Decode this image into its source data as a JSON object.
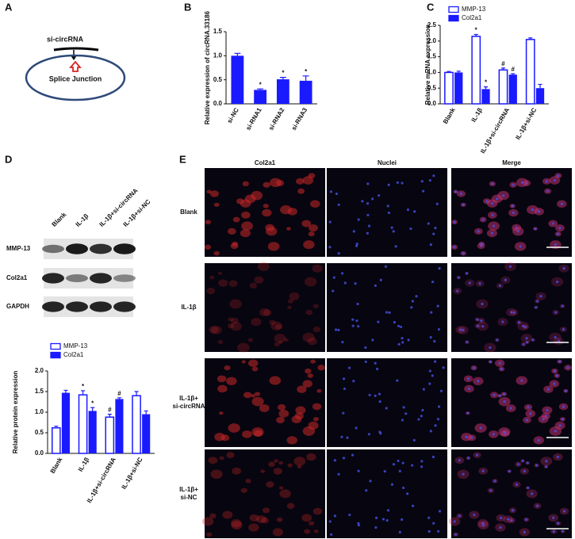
{
  "panel_labels": [
    "A",
    "B",
    "C",
    "D",
    "E"
  ],
  "diagram": {
    "inhibitor": "si-circRNA",
    "target": "Splice Junction"
  },
  "blot": {
    "lanes": [
      "Blank",
      "IL-1β",
      "IL-1β+si-circRNA",
      "IL-1β+si-NC"
    ],
    "rows": [
      "MMP-13",
      "Col2a1",
      "GAPDH"
    ]
  },
  "micrographs": {
    "columns": [
      "Col2a1",
      "Nuclei",
      "Merge"
    ],
    "rows": [
      [
        "Blank"
      ],
      [
        "IL-1β"
      ],
      [
        "IL-1β+",
        "si-circRNA"
      ],
      [
        "IL-1β+",
        "si-NC"
      ]
    ]
  },
  "chart_data": [
    {
      "type": "bar",
      "ylabel": "Relative expression of circRNA.33186",
      "categories": [
        "si-NC",
        "si-RNA1",
        "si-RNA2",
        "si-RNA3"
      ],
      "values": [
        1.0,
        0.29,
        0.51,
        0.48
      ],
      "errors": [
        0.05,
        0.02,
        0.04,
        0.1
      ],
      "annotations": [
        null,
        "*",
        "*",
        "*"
      ],
      "color": "#1a1aff",
      "ylim": [
        0,
        1.5
      ],
      "yticks": [
        {
          "value": 0,
          "label": "0.0"
        },
        {
          "value": 0.5,
          "label": "0.5"
        },
        {
          "value": 1,
          "label": "1.0"
        },
        {
          "value": 1.5,
          "label": "1.5"
        }
      ]
    },
    {
      "type": "bar",
      "ylabel": "Relative mRNA expression",
      "categories": [
        "Blank",
        "IL-1β",
        "IL-1β+si-circRNA",
        "IL-1β+si-NC"
      ],
      "series": [
        {
          "name": "MMP-13",
          "color": "#1a1aff",
          "hollow": true,
          "values": [
            1.0,
            2.15,
            1.08,
            2.05
          ],
          "errors": [
            0.03,
            0.06,
            0.06,
            0.05
          ],
          "annotations": [
            null,
            "*",
            "#",
            null
          ]
        },
        {
          "name": "Col2a1",
          "color": "#1a1aff",
          "hollow": false,
          "values": [
            1.0,
            0.47,
            0.93,
            0.5
          ],
          "errors": [
            0.04,
            0.07,
            0.03,
            0.12
          ],
          "annotations": [
            null,
            "*",
            "#",
            null
          ]
        }
      ],
      "legend": "top-left",
      "ylim": [
        0,
        2.5
      ],
      "yticks": [
        {
          "value": 0,
          "label": "0.0"
        },
        {
          "value": 0.5,
          "label": "0.5"
        },
        {
          "value": 1,
          "label": "1.0"
        },
        {
          "value": 1.5,
          "label": "1.5"
        },
        {
          "value": 2,
          "label": "2.0"
        },
        {
          "value": 2.5,
          "label": "2.5"
        }
      ]
    },
    {
      "type": "bar",
      "ylabel": "Relative protein expression",
      "categories": [
        "Blank",
        "IL-1β",
        "IL-1β+si-circRNA",
        "IL-1β+si-NC"
      ],
      "series": [
        {
          "name": "MMP-13",
          "color": "#1a1aff",
          "hollow": true,
          "values": [
            0.62,
            1.42,
            0.88,
            1.4
          ],
          "errors": [
            0.04,
            0.1,
            0.07,
            0.1
          ],
          "annotations": [
            null,
            "*",
            "#",
            null
          ]
        },
        {
          "name": "Col2a1",
          "color": "#1a1aff",
          "hollow": false,
          "values": [
            1.47,
            1.03,
            1.32,
            0.95
          ],
          "errors": [
            0.06,
            0.08,
            0.03,
            0.08
          ],
          "annotations": [
            null,
            "*",
            "#",
            null
          ]
        }
      ],
      "legend": "top-left",
      "ylim": [
        0,
        2
      ],
      "yticks": [
        {
          "value": 0,
          "label": "0.0"
        },
        {
          "value": 0.5,
          "label": "0.5"
        },
        {
          "value": 1,
          "label": "1.0"
        },
        {
          "value": 1.5,
          "label": "1.5"
        },
        {
          "value": 2,
          "label": "2.0"
        }
      ]
    }
  ]
}
